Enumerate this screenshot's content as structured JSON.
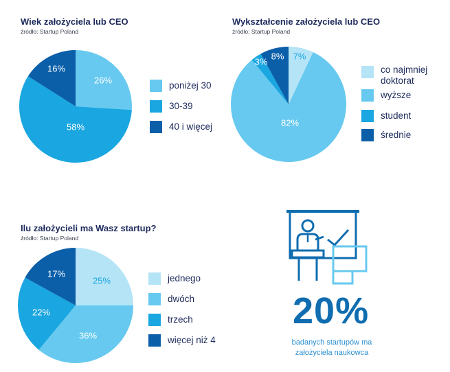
{
  "colors": {
    "lightest": "#b5e4f7",
    "light": "#67c9ef",
    "mid": "#1aa6e0",
    "dark": "#0b5fa9",
    "title": "#1d2a5c",
    "accent": "#0f6db0",
    "caption": "#2a8fd0"
  },
  "chart_data": [
    {
      "type": "pie",
      "title": "Wiek założyciela lub CEO",
      "source": "źródło: Startup Poland",
      "slices": [
        {
          "label": "poniżej 30",
          "value": 26,
          "display": "26%",
          "color": "#67c9ef",
          "text_color": "#ffffff"
        },
        {
          "label": "30-39",
          "value": 58,
          "display": "58%",
          "color": "#1aa6e0",
          "text_color": "#ffffff"
        },
        {
          "label": "40 i więcej",
          "value": 16,
          "display": "16%",
          "color": "#0b5fa9",
          "text_color": "#ffffff"
        }
      ]
    },
    {
      "type": "pie",
      "title": "Wykształcenie założyciela lub CEO",
      "source": "źródło: Startup Poland",
      "slices": [
        {
          "label": "co najmniej doktorat",
          "value": 7,
          "display": "7%",
          "color": "#b5e4f7",
          "text_color": "#1aa6e0"
        },
        {
          "label": "wyższe",
          "value": 82,
          "display": "82%",
          "color": "#67c9ef",
          "text_color": "#ffffff"
        },
        {
          "label": "student",
          "value": 3,
          "display": "3%",
          "color": "#1aa6e0",
          "text_color": "#ffffff"
        },
        {
          "label": "średnie",
          "value": 8,
          "display": "8%",
          "color": "#0b5fa9",
          "text_color": "#ffffff"
        }
      ]
    },
    {
      "type": "pie",
      "title": "Ilu założycieli ma Wasz startup?",
      "source": "źródło: Startup Poland",
      "slices": [
        {
          "label": "jednego",
          "value": 25,
          "display": "25%",
          "color": "#b5e4f7",
          "text_color": "#1aa6e0"
        },
        {
          "label": "dwóch",
          "value": 36,
          "display": "36%",
          "color": "#67c9ef",
          "text_color": "#ffffff"
        },
        {
          "label": "trzech",
          "value": 22,
          "display": "22%",
          "color": "#1aa6e0",
          "text_color": "#ffffff"
        },
        {
          "label": "więcej niż 4",
          "value": 17,
          "display": "17%",
          "color": "#0b5fa9",
          "text_color": "#ffffff"
        }
      ]
    }
  ],
  "stat": {
    "value": "20%",
    "caption_line1": "badanych startupów ma",
    "caption_line2": "założyciela naukowca",
    "icon": "presenter-chart-icon"
  }
}
